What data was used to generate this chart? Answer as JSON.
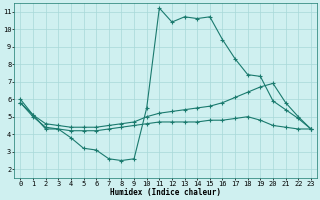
{
  "background_color": "#cff0f0",
  "grid_color": "#a8d8d8",
  "line_color": "#1a7a6e",
  "line_width": 0.8,
  "marker": "+",
  "marker_size": 3,
  "marker_edge_width": 0.8,
  "xlim": [
    -0.5,
    23.5
  ],
  "ylim": [
    1.5,
    11.5
  ],
  "xlabel": "Humidex (Indice chaleur)",
  "xlabel_fontsize": 5.5,
  "tick_fontsize": 5.0,
  "yticks": [
    2,
    3,
    4,
    5,
    6,
    7,
    8,
    9,
    10,
    11
  ],
  "xticks": [
    0,
    1,
    2,
    3,
    4,
    5,
    6,
    7,
    8,
    9,
    10,
    11,
    12,
    13,
    14,
    15,
    16,
    17,
    18,
    19,
    20,
    21,
    22,
    23
  ],
  "curves": [
    {
      "x": [
        0,
        1,
        2,
        3,
        4,
        5,
        6,
        7,
        8,
        9,
        10,
        11,
        12,
        13,
        14,
        15,
        16,
        17,
        18,
        19,
        20,
        21,
        22,
        23
      ],
      "y": [
        6.0,
        5.1,
        4.3,
        4.3,
        3.8,
        3.2,
        3.1,
        2.6,
        2.5,
        2.6,
        5.5,
        11.2,
        10.4,
        10.7,
        10.6,
        10.7,
        9.4,
        8.3,
        7.4,
        7.3,
        5.9,
        5.4,
        4.9,
        4.3
      ]
    },
    {
      "x": [
        0,
        1,
        2,
        3,
        4,
        5,
        6,
        7,
        8,
        9,
        10,
        11,
        12,
        13,
        14,
        15,
        16,
        17,
        18,
        19,
        20,
        21,
        22,
        23
      ],
      "y": [
        5.8,
        5.1,
        4.6,
        4.5,
        4.4,
        4.4,
        4.4,
        4.5,
        4.6,
        4.7,
        5.0,
        5.2,
        5.3,
        5.4,
        5.5,
        5.6,
        5.8,
        6.1,
        6.4,
        6.7,
        6.9,
        5.8,
        5.0,
        4.3
      ]
    },
    {
      "x": [
        0,
        1,
        2,
        3,
        4,
        5,
        6,
        7,
        8,
        9,
        10,
        11,
        12,
        13,
        14,
        15,
        16,
        17,
        18,
        19,
        20,
        21,
        22,
        23
      ],
      "y": [
        5.8,
        5.0,
        4.4,
        4.3,
        4.2,
        4.2,
        4.2,
        4.3,
        4.4,
        4.5,
        4.6,
        4.7,
        4.7,
        4.7,
        4.7,
        4.8,
        4.8,
        4.9,
        5.0,
        4.8,
        4.5,
        4.4,
        4.3,
        4.3
      ]
    }
  ]
}
